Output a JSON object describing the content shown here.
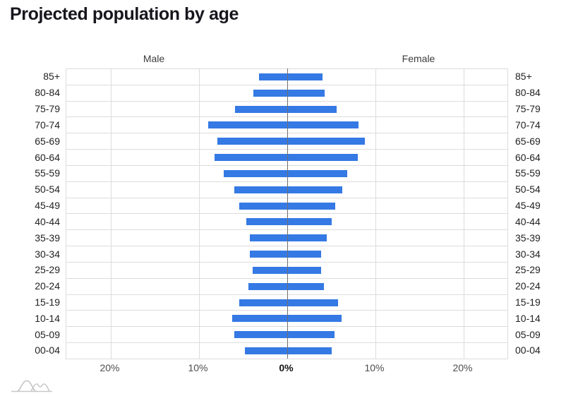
{
  "chart_data": {
    "type": "bar",
    "variant": "population_pyramid",
    "title": "Projected population by age",
    "panel_labels": {
      "left": "Male",
      "right": "Female"
    },
    "categories": [
      "85+",
      "80-84",
      "75-79",
      "70-74",
      "65-69",
      "60-64",
      "55-59",
      "50-54",
      "45-49",
      "40-44",
      "35-39",
      "30-34",
      "25-29",
      "20-24",
      "15-19",
      "10-14",
      "05-09",
      "00-04"
    ],
    "series": [
      {
        "name": "Male",
        "side": "left",
        "values": [
          3.2,
          3.8,
          5.9,
          8.9,
          7.9,
          8.2,
          7.2,
          6.0,
          5.4,
          4.6,
          4.2,
          4.2,
          3.9,
          4.4,
          5.4,
          6.2,
          6.0,
          4.8
        ]
      },
      {
        "name": "Female",
        "side": "right",
        "values": [
          4.0,
          4.3,
          5.6,
          8.1,
          8.8,
          8.0,
          6.8,
          6.3,
          5.5,
          5.1,
          4.5,
          3.9,
          3.9,
          4.2,
          5.8,
          6.2,
          5.4,
          5.1
        ]
      }
    ],
    "x_ticks": [
      {
        "label": "20%",
        "value": -20,
        "bold": false
      },
      {
        "label": "10%",
        "value": -10,
        "bold": false
      },
      {
        "label": "0%",
        "value": 0,
        "bold": true
      },
      {
        "label": "10%",
        "value": 10,
        "bold": false
      },
      {
        "label": "20%",
        "value": 20,
        "bold": false
      }
    ],
    "x_axis_range_each_side": 25,
    "unit": "%",
    "grid": true,
    "legend_position": "none",
    "age_labels_shown_on": "both-sides",
    "colors": {
      "bar": "#3579e4",
      "grid": "#dcdcdc",
      "zero_axis": "#6f6f6f",
      "title": "#16161d",
      "logo": "#c9c9c9"
    }
  }
}
